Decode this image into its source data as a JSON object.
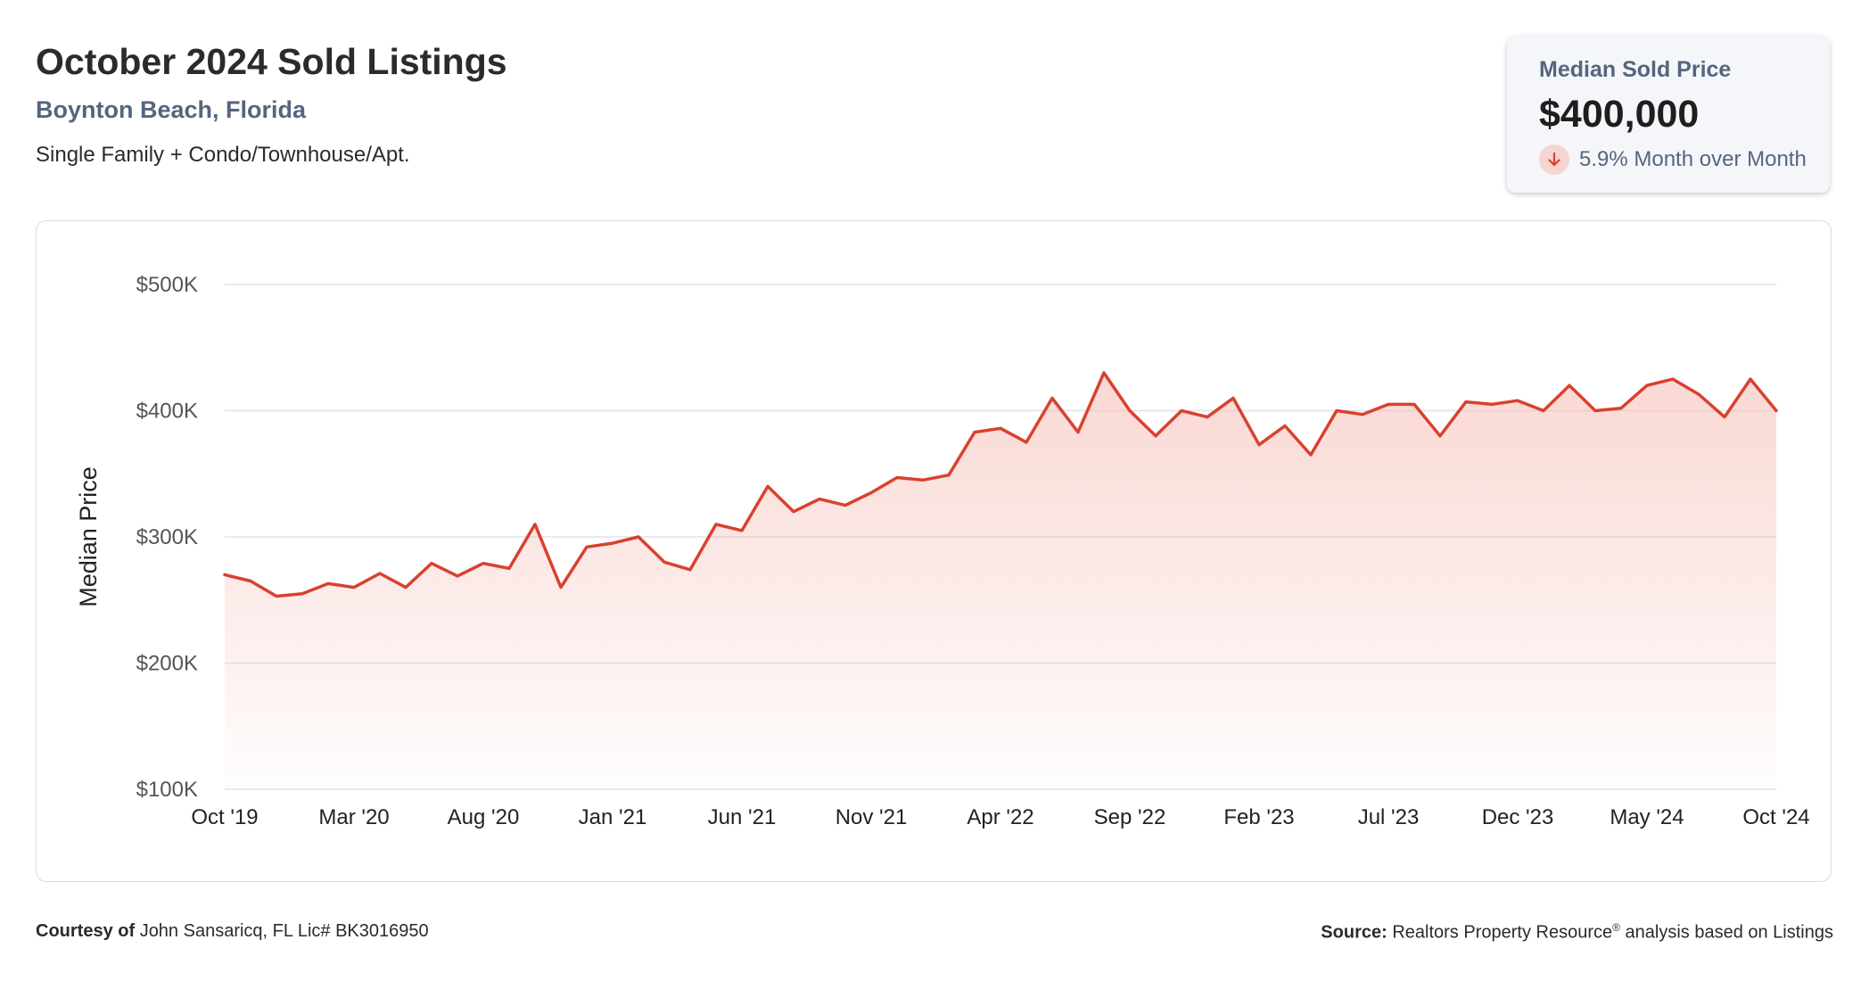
{
  "header": {
    "title": "October 2024 Sold Listings",
    "location": "Boynton Beach, Florida",
    "property_types": "Single Family + Condo/Townhouse/Apt."
  },
  "stat_card": {
    "label": "Median Sold Price",
    "value": "$400,000",
    "change": "5.9% Month over Month",
    "change_direction": "down",
    "change_icon": "arrow-down-icon",
    "change_color": "#d9412e"
  },
  "footer": {
    "courtesy_label": "Courtesy of",
    "courtesy_text": "John Sansaricq, FL Lic# BK3016950",
    "source_label": "Source:",
    "source_text": "Realtors Property Resource",
    "source_mark": "®",
    "source_suffix": "analysis based on Listings"
  },
  "chart_data": {
    "type": "area",
    "ylabel": "Median Price",
    "xlabel": "",
    "ylim": [
      100000,
      500000
    ],
    "yticks": [
      100000,
      200000,
      300000,
      400000,
      500000
    ],
    "ytick_labels": [
      "$100K",
      "$200K",
      "$300K",
      "$400K",
      "$500K"
    ],
    "xtick_labels": [
      "Oct '19",
      "Mar '20",
      "Aug '20",
      "Jan '21",
      "Jun '21",
      "Nov '21",
      "Apr '22",
      "Sep '22",
      "Feb '23",
      "Jul '23",
      "Dec '23",
      "May '24",
      "Oct '24"
    ],
    "xtick_every": 5,
    "grid": true,
    "line_color": "#d9412e",
    "fill_color": "#f4b8b0",
    "series": [
      {
        "values": [
          270000,
          265000,
          253000,
          255000,
          263000,
          260000,
          271000,
          260000,
          279000,
          269000,
          279000,
          275000,
          310000,
          260000,
          292000,
          295000,
          300000,
          280000,
          274000,
          310000,
          305000,
          340000,
          320000,
          330000,
          325000,
          335000,
          347000,
          345000,
          349000,
          383000,
          386000,
          375000,
          410000,
          383000,
          430000,
          400000,
          380000,
          400000,
          395000,
          410000,
          373000,
          388000,
          365000,
          400000,
          397000,
          405000,
          405000,
          380000,
          407000,
          405000,
          408000,
          400000,
          420000,
          400000,
          402000,
          420000,
          425000,
          413000,
          395000,
          425000,
          400000
        ]
      }
    ]
  }
}
